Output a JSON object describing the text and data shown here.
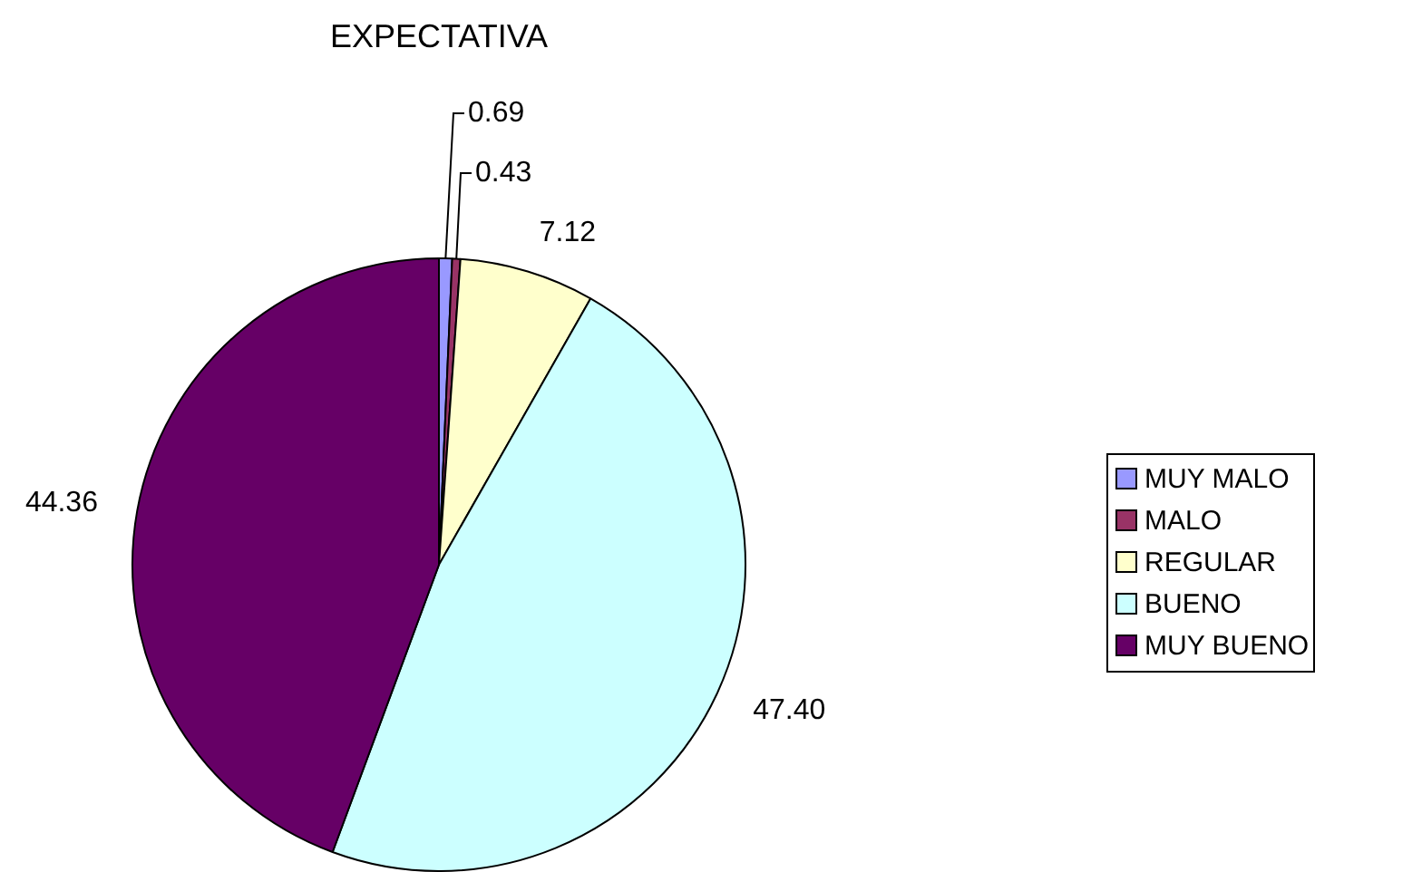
{
  "chart_data": {
    "type": "pie",
    "title": "EXPECTATIVA",
    "categories": [
      "MUY MALO",
      "MALO",
      "REGULAR",
      "BUENO",
      "MUY BUENO"
    ],
    "values": [
      0.69,
      0.43,
      7.12,
      47.4,
      44.36
    ],
    "value_labels": [
      "0.69",
      "0.43",
      "7.12",
      "47.40",
      "44.36"
    ],
    "colors": [
      "#9999ff",
      "#993366",
      "#ffffcc",
      "#ccffff",
      "#660066"
    ],
    "legend": "right"
  }
}
